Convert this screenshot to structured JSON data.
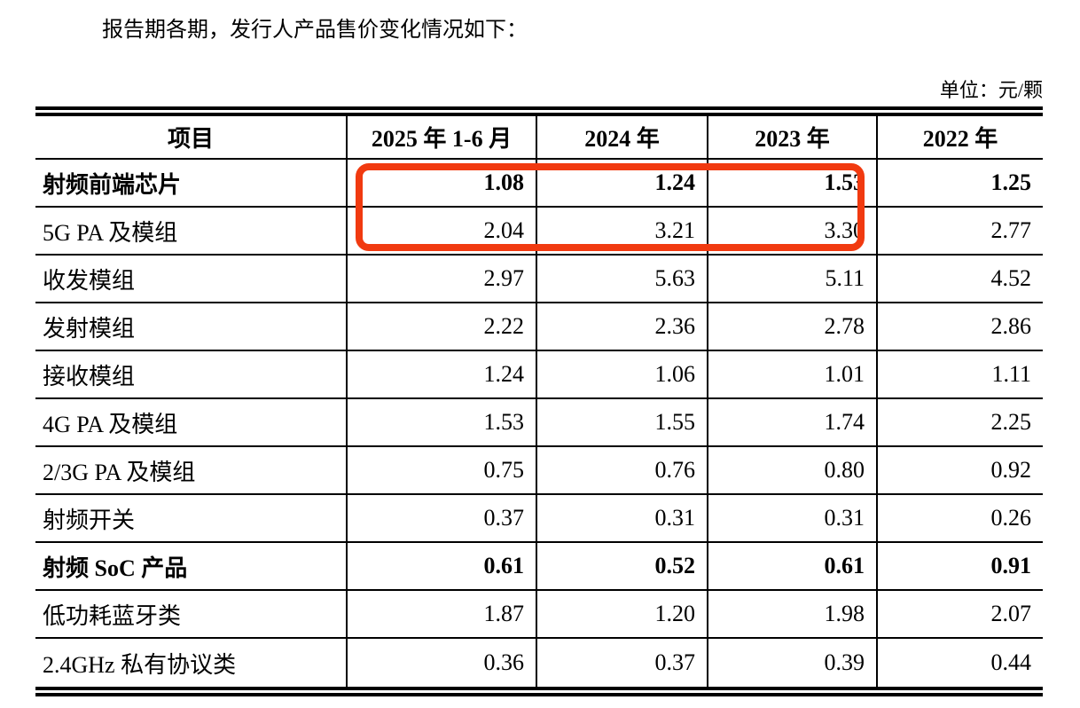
{
  "page": {
    "intro": "报告期各期，发行人产品售价变化情况如下：",
    "unit_label": "单位：元/颗"
  },
  "table": {
    "columns": [
      "项目",
      "2025 年 1-6 月",
      "2024 年",
      "2023 年",
      "2022 年"
    ],
    "rows": [
      {
        "label": "射频前端芯片",
        "values": [
          "1.08",
          "1.24",
          "1.53",
          "1.25"
        ],
        "bold": true
      },
      {
        "label": "5G PA 及模组",
        "values": [
          "2.04",
          "3.21",
          "3.30",
          "2.77"
        ],
        "bold": false
      },
      {
        "label": "收发模组",
        "values": [
          "2.97",
          "5.63",
          "5.11",
          "4.52"
        ],
        "bold": false
      },
      {
        "label": "发射模组",
        "values": [
          "2.22",
          "2.36",
          "2.78",
          "2.86"
        ],
        "bold": false
      },
      {
        "label": "接收模组",
        "values": [
          "1.24",
          "1.06",
          "1.01",
          "1.11"
        ],
        "bold": false
      },
      {
        "label": "4G PA 及模组",
        "values": [
          "1.53",
          "1.55",
          "1.74",
          "2.25"
        ],
        "bold": false
      },
      {
        "label": "2/3G PA 及模组",
        "values": [
          "0.75",
          "0.76",
          "0.80",
          "0.92"
        ],
        "bold": false
      },
      {
        "label": "射频开关",
        "values": [
          "0.37",
          "0.31",
          "0.31",
          "0.26"
        ],
        "bold": false
      },
      {
        "label": "射频 SoC 产品",
        "values": [
          "0.61",
          "0.52",
          "0.61",
          "0.91"
        ],
        "bold": true
      },
      {
        "label": "低功耗蓝牙类",
        "values": [
          "1.87",
          "1.20",
          "1.98",
          "2.07"
        ],
        "bold": false
      },
      {
        "label": "2.4GHz 私有协议类",
        "values": [
          "0.36",
          "0.37",
          "0.39",
          "0.44"
        ],
        "bold": false
      }
    ]
  },
  "annotation": {
    "type": "highlight-box",
    "color": "#f13a10",
    "covers_rows": [
      "射频前端芯片",
      "5G PA 及模组"
    ],
    "covers_columns": [
      "2025 年 1-6 月",
      "2024 年",
      "2023 年"
    ]
  }
}
